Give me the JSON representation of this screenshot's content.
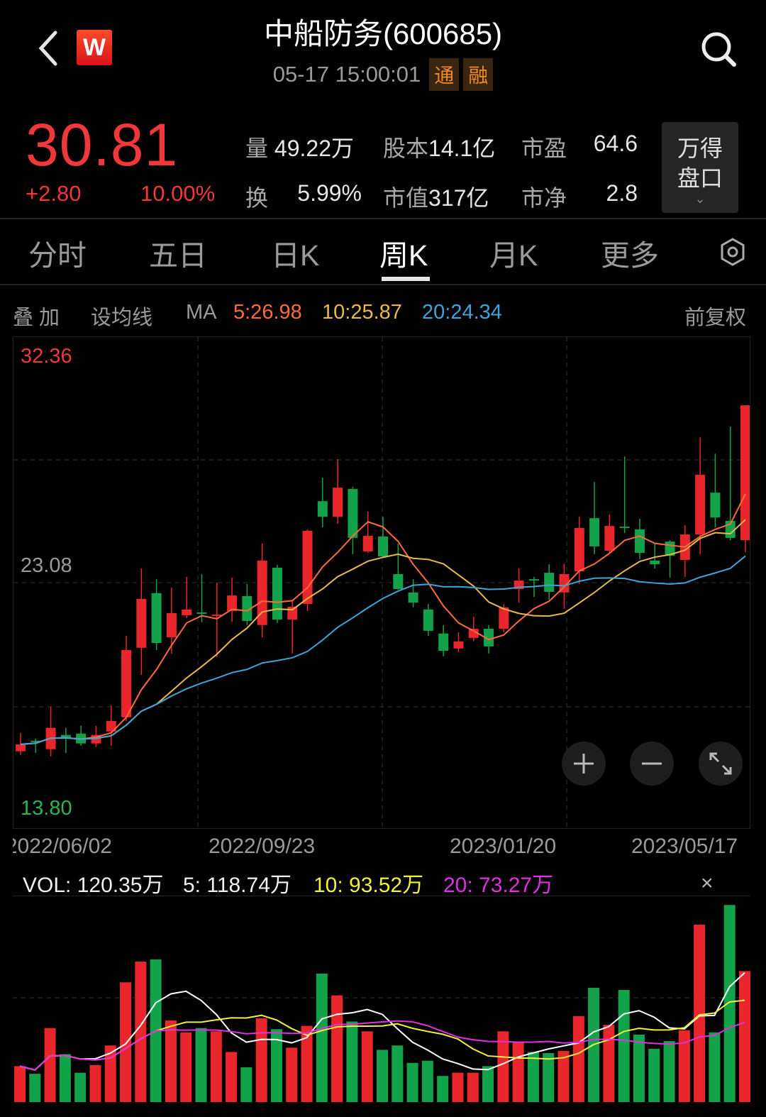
{
  "header": {
    "back_icon": "chevron-left-icon",
    "logo_text": "W",
    "title": "中船防务(600685)",
    "datetime": "05-17 15:00:01",
    "badges": [
      "通",
      "融"
    ],
    "search_icon": "search-icon"
  },
  "quote": {
    "price": "30.81",
    "change": "+2.80",
    "change_pct": "10.00%",
    "stats": [
      {
        "label": "量",
        "value": "49.22万"
      },
      {
        "label": "股本",
        "value": "14.1亿"
      },
      {
        "label": "市盈",
        "value": "64.6"
      },
      {
        "label": "换",
        "value": "5.99%"
      },
      {
        "label": "市值",
        "value": "317亿"
      },
      {
        "label": "市净",
        "value": "2.8"
      }
    ],
    "panel_button": {
      "line1": "万得",
      "line2": "盘口"
    }
  },
  "tabs": [
    {
      "label": "分时",
      "active": false
    },
    {
      "label": "五日",
      "active": false
    },
    {
      "label": "日K",
      "active": false
    },
    {
      "label": "周K",
      "active": true
    },
    {
      "label": "月K",
      "active": false
    },
    {
      "label": "更多",
      "active": false
    }
  ],
  "toolbar": {
    "overlay": "叠 加",
    "set_ma": "设均线",
    "ma_label": "MA",
    "ma5": "5:26.98",
    "ma10": "10:25.87",
    "ma20": "20:24.34",
    "adjust": "前复权"
  },
  "colors": {
    "up": "#e8262b",
    "down": "#12a34a",
    "ma5": "#ff6a3d",
    "ma10": "#e8b84a",
    "ma20": "#3fa3d9",
    "vol_ma5": "#ffffff",
    "vol_ma10": "#f0f040",
    "vol_ma20": "#e030e0"
  },
  "chart_data": {
    "type": "candlestick",
    "period": "weekly",
    "ylim": [
      13.8,
      32.36
    ],
    "y_labels": {
      "max": "32.36",
      "mid": "23.08",
      "min": "13.80"
    },
    "x_labels": [
      "2022/06/02",
      "2022/09/23",
      "2023/01/20",
      "2023/05/17"
    ],
    "grid": true,
    "candles": [
      [
        15.73,
        16.03,
        16.53,
        15.57
      ],
      [
        16.19,
        16.13,
        16.28,
        15.66
      ],
      [
        15.82,
        16.75,
        17.67,
        15.51
      ],
      [
        16.44,
        16.34,
        16.75,
        15.66
      ],
      [
        16.5,
        16.07,
        16.84,
        15.97
      ],
      [
        16.07,
        16.44,
        16.84,
        15.91
      ],
      [
        16.59,
        17.05,
        17.73,
        15.97
      ],
      [
        17.21,
        20.14,
        20.76,
        17.05
      ],
      [
        20.24,
        22.37,
        23.7,
        19.06
      ],
      [
        22.62,
        20.45,
        23.23,
        20.14
      ],
      [
        20.7,
        21.75,
        22.86,
        19.99
      ],
      [
        21.66,
        21.91,
        23.33,
        21.53
      ],
      [
        21.78,
        21.72,
        23.45,
        21.35
      ],
      [
        21.66,
        21.69,
        23.08,
        19.84
      ],
      [
        21.84,
        22.52,
        23.3,
        21.38
      ],
      [
        22.49,
        21.41,
        23.02,
        21.23
      ],
      [
        21.23,
        24.04,
        24.78,
        20.7
      ],
      [
        23.73,
        21.47,
        23.85,
        21.32
      ],
      [
        21.47,
        22.03,
        22.31,
        19.99
      ],
      [
        22.15,
        25.34,
        25.4,
        21.84
      ],
      [
        26.63,
        25.95,
        27.65,
        25.49
      ],
      [
        25.95,
        27.22,
        28.46,
        25.64
      ],
      [
        27.16,
        25.03,
        27.25,
        24.32
      ],
      [
        24.44,
        25.12,
        26.17,
        24.38
      ],
      [
        25.09,
        24.22,
        25.95,
        24.16
      ],
      [
        23.45,
        22.8,
        24.78,
        22.77
      ],
      [
        22.65,
        22.21,
        23.23,
        22.0
      ],
      [
        21.91,
        20.98,
        22.15,
        20.76
      ],
      [
        20.86,
        20.11,
        21.23,
        19.87
      ],
      [
        20.21,
        20.52,
        20.92,
        20.05
      ],
      [
        20.67,
        21.07,
        21.6,
        20.52
      ],
      [
        21.07,
        20.3,
        21.23,
        19.99
      ],
      [
        21.07,
        22.0,
        22.15,
        20.92
      ],
      [
        22.8,
        23.17,
        23.7,
        22.21
      ],
      [
        23.23,
        23.2,
        23.33,
        22.46
      ],
      [
        23.51,
        22.68,
        23.88,
        22.34
      ],
      [
        22.65,
        23.45,
        23.91,
        21.94
      ],
      [
        23.57,
        25.46,
        25.95,
        23.02
      ],
      [
        25.89,
        24.66,
        27.47,
        24.32
      ],
      [
        24.47,
        25.55,
        26.05,
        24.38
      ],
      [
        25.52,
        25.49,
        28.58,
        25.24
      ],
      [
        25.4,
        24.38,
        25.86,
        24.1
      ],
      [
        24.04,
        23.88,
        24.78,
        23.7
      ],
      [
        24.87,
        24.25,
        24.93,
        23.3
      ],
      [
        24.07,
        25.18,
        25.58,
        23.33
      ],
      [
        25.18,
        27.78,
        29.41,
        24.32
      ],
      [
        27.0,
        25.92,
        28.7,
        25.49
      ],
      [
        25.77,
        25.03,
        29.88,
        24.93
      ],
      [
        24.93,
        30.81,
        30.81,
        24.41
      ]
    ],
    "candle_fields": [
      "open",
      "close",
      "high",
      "low"
    ],
    "ma_periods": [
      5,
      10,
      20
    ],
    "volume": {
      "unit": "万",
      "values": [
        33,
        26,
        68,
        44,
        27,
        34,
        52,
        110,
        129,
        131,
        75,
        64,
        68,
        65,
        46,
        32,
        77,
        67,
        50,
        70,
        118,
        98,
        74,
        65,
        48,
        52,
        36,
        38,
        24,
        27,
        27,
        33,
        65,
        55,
        46,
        45,
        47,
        79,
        105,
        71,
        103,
        62,
        49,
        56,
        66,
        163,
        64,
        181,
        120.35
      ],
      "ylim": [
        0,
        189
      ],
      "labels": {
        "vol": "VOL: 120.35万",
        "ma5": "5: 118.74万",
        "ma10": "10: 93.52万",
        "ma20": "20: 73.27万"
      }
    }
  },
  "controls": {
    "zoom_in_icon": "plus-icon",
    "zoom_out_icon": "minus-icon",
    "fullscreen_icon": "expand-icon",
    "close_icon": "close-icon",
    "close_text": "×"
  }
}
